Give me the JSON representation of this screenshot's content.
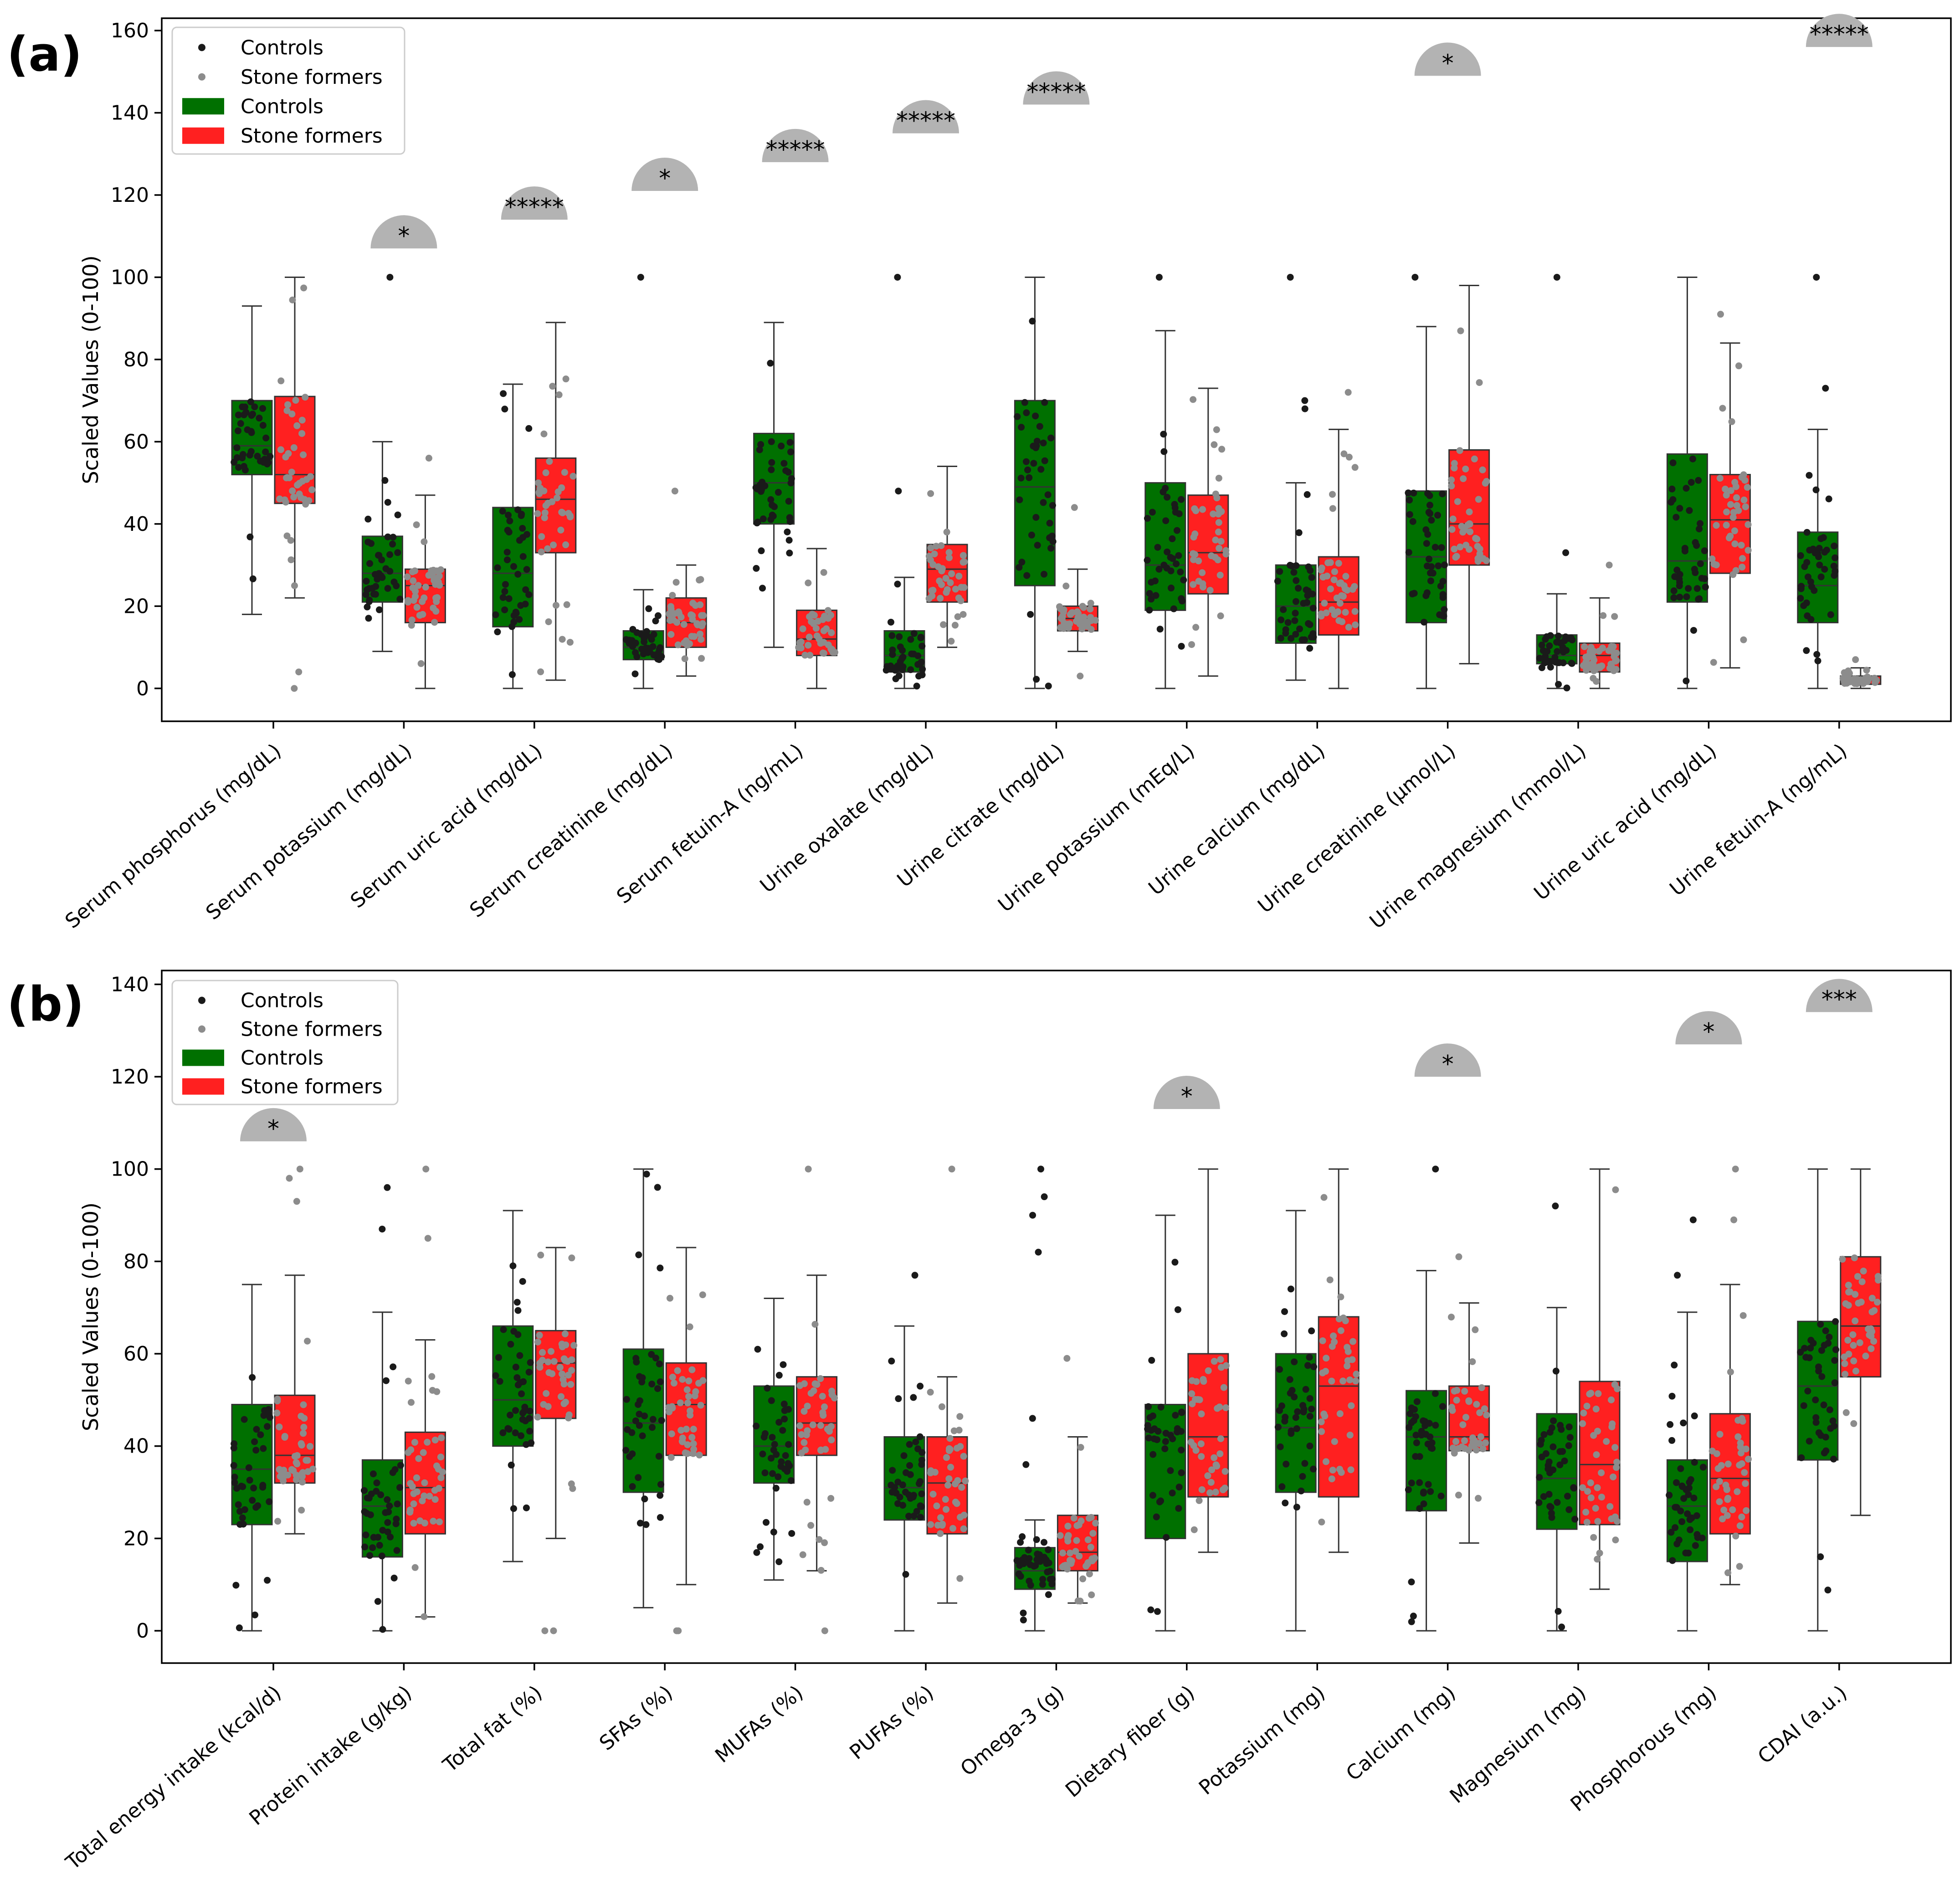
{
  "figure": {
    "legend": {
      "scatter_controls": "Controls",
      "scatter_stone": "Stone formers",
      "box_controls": "Controls",
      "box_stone": "Stone formers"
    },
    "colors": {
      "control_box": "#007000",
      "stone_box": "#ff2020",
      "control_dot": "#1a1a1a",
      "stone_dot": "#8c8c8c",
      "sig_badge": "#b3b3b3"
    }
  },
  "chart_data": [
    {
      "panel_label": "(a)",
      "type": "box",
      "ylabel": "Scaled Values (0-100)",
      "ylim": [
        -8,
        163
      ],
      "yticks": [
        0,
        20,
        40,
        60,
        80,
        100,
        120,
        140,
        160
      ],
      "legend_position": "top-left",
      "categories": [
        "Serum phosphorus (mg/dL)",
        "Serum potassium (mg/dL)",
        "Serum uric acid (mg/dL)",
        "Serum creatinine (mg/dL)",
        "Serum fetuin-A (ng/mL)",
        "Urine oxalate (mg/dL)",
        "Urine citrate (mg/dL)",
        "Urine potassium (mEq/L)",
        "Urine calcium (mg/dL)",
        "Urine creatinine (μmol/L)",
        "Urine magnesium (mmol/L)",
        "Urine uric acid (mg/dL)",
        "Urine fetuin-A (ng/mL)"
      ],
      "series": [
        {
          "name": "Controls",
          "boxes": [
            {
              "wlo": 18,
              "q1": 52,
              "med": 59,
              "q3": 70,
              "whi": 93
            },
            {
              "wlo": 9,
              "q1": 21,
              "med": 28,
              "q3": 37,
              "whi": 60
            },
            {
              "wlo": 0,
              "q1": 15,
              "med": 28,
              "q3": 44,
              "whi": 74
            },
            {
              "wlo": 0,
              "q1": 7,
              "med": 10,
              "q3": 14,
              "whi": 24
            },
            {
              "wlo": 10,
              "q1": 40,
              "med": 50,
              "q3": 62,
              "whi": 89
            },
            {
              "wlo": 0,
              "q1": 4,
              "med": 8,
              "q3": 14,
              "whi": 27
            },
            {
              "wlo": 0,
              "q1": 25,
              "med": 49,
              "q3": 70,
              "whi": 100
            },
            {
              "wlo": 0,
              "q1": 19,
              "med": 30,
              "q3": 50,
              "whi": 87
            },
            {
              "wlo": 2,
              "q1": 11,
              "med": 20,
              "q3": 30,
              "whi": 50
            },
            {
              "wlo": 0,
              "q1": 16,
              "med": 32,
              "q3": 48,
              "whi": 88
            },
            {
              "wlo": 0,
              "q1": 6,
              "med": 8,
              "q3": 13,
              "whi": 23
            },
            {
              "wlo": 0,
              "q1": 21,
              "med": 31,
              "q3": 57,
              "whi": 100
            },
            {
              "wlo": 0,
              "q1": 16,
              "med": 25,
              "q3": 38,
              "whi": 63
            }
          ],
          "outliers": [
            [],
            [
              100
            ],
            [],
            [
              100
            ],
            [],
            [
              100,
              48
            ],
            [],
            [
              100
            ],
            [
              100,
              70,
              68
            ],
            [
              100
            ],
            [
              100,
              33
            ],
            [],
            [
              100,
              73
            ]
          ],
          "n_points": 40
        },
        {
          "name": "Stone formers",
          "boxes": [
            {
              "wlo": 22,
              "q1": 45,
              "med": 52,
              "q3": 71,
              "whi": 100
            },
            {
              "wlo": 0,
              "q1": 16,
              "med": 25,
              "q3": 29,
              "whi": 47
            },
            {
              "wlo": 2,
              "q1": 33,
              "med": 46,
              "q3": 56,
              "whi": 89
            },
            {
              "wlo": 3,
              "q1": 10,
              "med": 16,
              "q3": 22,
              "whi": 30
            },
            {
              "wlo": 0,
              "q1": 8,
              "med": 12,
              "q3": 19,
              "whi": 34
            },
            {
              "wlo": 10,
              "q1": 21,
              "med": 29,
              "q3": 35,
              "whi": 54
            },
            {
              "wlo": 9,
              "q1": 14,
              "med": 17,
              "q3": 20,
              "whi": 29
            },
            {
              "wlo": 3,
              "q1": 23,
              "med": 33,
              "q3": 47,
              "whi": 73
            },
            {
              "wlo": 0,
              "q1": 13,
              "med": 21,
              "q3": 32,
              "whi": 63
            },
            {
              "wlo": 6,
              "q1": 30,
              "med": 40,
              "q3": 58,
              "whi": 98
            },
            {
              "wlo": 0,
              "q1": 4,
              "med": 8,
              "q3": 11,
              "whi": 22
            },
            {
              "wlo": 5,
              "q1": 28,
              "med": 41,
              "q3": 52,
              "whi": 84
            },
            {
              "wlo": 0,
              "q1": 1,
              "med": 2,
              "q3": 3,
              "whi": 5
            }
          ],
          "outliers": [
            [
              4,
              0
            ],
            [
              56
            ],
            [],
            [
              48
            ],
            [],
            [],
            [
              44,
              3
            ],
            [],
            [
              72
            ],
            [],
            [
              30
            ],
            [
              91
            ],
            [
              7
            ]
          ],
          "n_points": 40
        }
      ],
      "significance": [
        "",
        "*",
        "*****",
        "*",
        "*****",
        "*****",
        "*****",
        "",
        "",
        "*",
        "",
        "",
        "*****"
      ],
      "significance_levels": [
        0,
        107,
        114,
        121,
        128,
        135,
        142,
        0,
        0,
        149,
        0,
        0,
        156
      ]
    },
    {
      "panel_label": "(b)",
      "type": "box",
      "ylabel": "Scaled Values (0-100)",
      "ylim": [
        -7,
        143
      ],
      "yticks": [
        0,
        20,
        40,
        60,
        80,
        100,
        120,
        140
      ],
      "legend_position": "top-left",
      "categories": [
        "Total energy intake (kcal/d)",
        "Protein intake (g/kg)",
        "Total fat (%)",
        "SFAs (%)",
        "MUFAs (%)",
        "PUFAs (%)",
        "Omega-3 (g)",
        "Dietary fiber (g)",
        "Potassium (mg)",
        "Calcium (mg)",
        "Magnesium (mg)",
        "Phosphorous (mg)",
        "CDAI (a.u.)"
      ],
      "series": [
        {
          "name": "Controls",
          "boxes": [
            {
              "wlo": 0,
              "q1": 23,
              "med": 35,
              "q3": 49,
              "whi": 75
            },
            {
              "wlo": 0,
              "q1": 16,
              "med": 27,
              "q3": 37,
              "whi": 69
            },
            {
              "wlo": 15,
              "q1": 40,
              "med": 50,
              "q3": 66,
              "whi": 91
            },
            {
              "wlo": 5,
              "q1": 30,
              "med": 45,
              "q3": 61,
              "whi": 100
            },
            {
              "wlo": 11,
              "q1": 32,
              "med": 40,
              "q3": 53,
              "whi": 72
            },
            {
              "wlo": 0,
              "q1": 24,
              "med": 31,
              "q3": 42,
              "whi": 66
            },
            {
              "wlo": 0,
              "q1": 9,
              "med": 13,
              "q3": 18,
              "whi": 24
            },
            {
              "wlo": 0,
              "q1": 20,
              "med": 43,
              "q3": 49,
              "whi": 90
            },
            {
              "wlo": 0,
              "q1": 30,
              "med": 44,
              "q3": 60,
              "whi": 91
            },
            {
              "wlo": 0,
              "q1": 26,
              "med": 42,
              "q3": 52,
              "whi": 78
            },
            {
              "wlo": 0,
              "q1": 22,
              "med": 33,
              "q3": 47,
              "whi": 70
            },
            {
              "wlo": 0,
              "q1": 15,
              "med": 27,
              "q3": 37,
              "whi": 69
            },
            {
              "wlo": 0,
              "q1": 37,
              "med": 53,
              "q3": 67,
              "whi": 100
            }
          ],
          "outliers": [
            [],
            [
              96,
              87
            ],
            [],
            [],
            [],
            [
              77
            ],
            [
              100,
              94,
              90,
              82,
              46,
              36
            ],
            [],
            [],
            [
              100
            ],
            [
              92
            ],
            [
              89,
              77
            ],
            []
          ],
          "n_points": 40
        },
        {
          "name": "Stone formers",
          "boxes": [
            {
              "wlo": 21,
              "q1": 32,
              "med": 38,
              "q3": 51,
              "whi": 77
            },
            {
              "wlo": 3,
              "q1": 21,
              "med": 31,
              "q3": 43,
              "whi": 63
            },
            {
              "wlo": 20,
              "q1": 46,
              "med": 58,
              "q3": 65,
              "whi": 83
            },
            {
              "wlo": 10,
              "q1": 38,
              "med": 49,
              "q3": 58,
              "whi": 83
            },
            {
              "wlo": 13,
              "q1": 38,
              "med": 45,
              "q3": 55,
              "whi": 77
            },
            {
              "wlo": 6,
              "q1": 21,
              "med": 32,
              "q3": 42,
              "whi": 55
            },
            {
              "wlo": 6,
              "q1": 13,
              "med": 17,
              "q3": 25,
              "whi": 42
            },
            {
              "wlo": 17,
              "q1": 29,
              "med": 42,
              "q3": 60,
              "whi": 100
            },
            {
              "wlo": 17,
              "q1": 29,
              "med": 53,
              "q3": 68,
              "whi": 100
            },
            {
              "wlo": 19,
              "q1": 39,
              "med": 42,
              "q3": 53,
              "whi": 71
            },
            {
              "wlo": 9,
              "q1": 23,
              "med": 36,
              "q3": 54,
              "whi": 100
            },
            {
              "wlo": 10,
              "q1": 21,
              "med": 33,
              "q3": 47,
              "whi": 75
            },
            {
              "wlo": 25,
              "q1": 55,
              "med": 66,
              "q3": 81,
              "whi": 100
            }
          ],
          "outliers": [
            [
              100,
              98,
              93
            ],
            [
              100,
              85
            ],
            [
              0,
              0
            ],
            [
              0,
              0
            ],
            [
              100,
              0
            ],
            [
              100
            ],
            [
              59
            ],
            [],
            [],
            [
              81
            ],
            [],
            [
              100,
              89
            ],
            []
          ],
          "n_points": 40
        }
      ],
      "significance": [
        "*",
        "",
        "",
        "",
        "",
        "",
        "",
        "*",
        "",
        "*",
        "",
        "*",
        "***"
      ],
      "significance_levels": [
        106,
        0,
        0,
        0,
        0,
        0,
        0,
        113,
        0,
        120,
        0,
        127,
        134
      ]
    }
  ]
}
